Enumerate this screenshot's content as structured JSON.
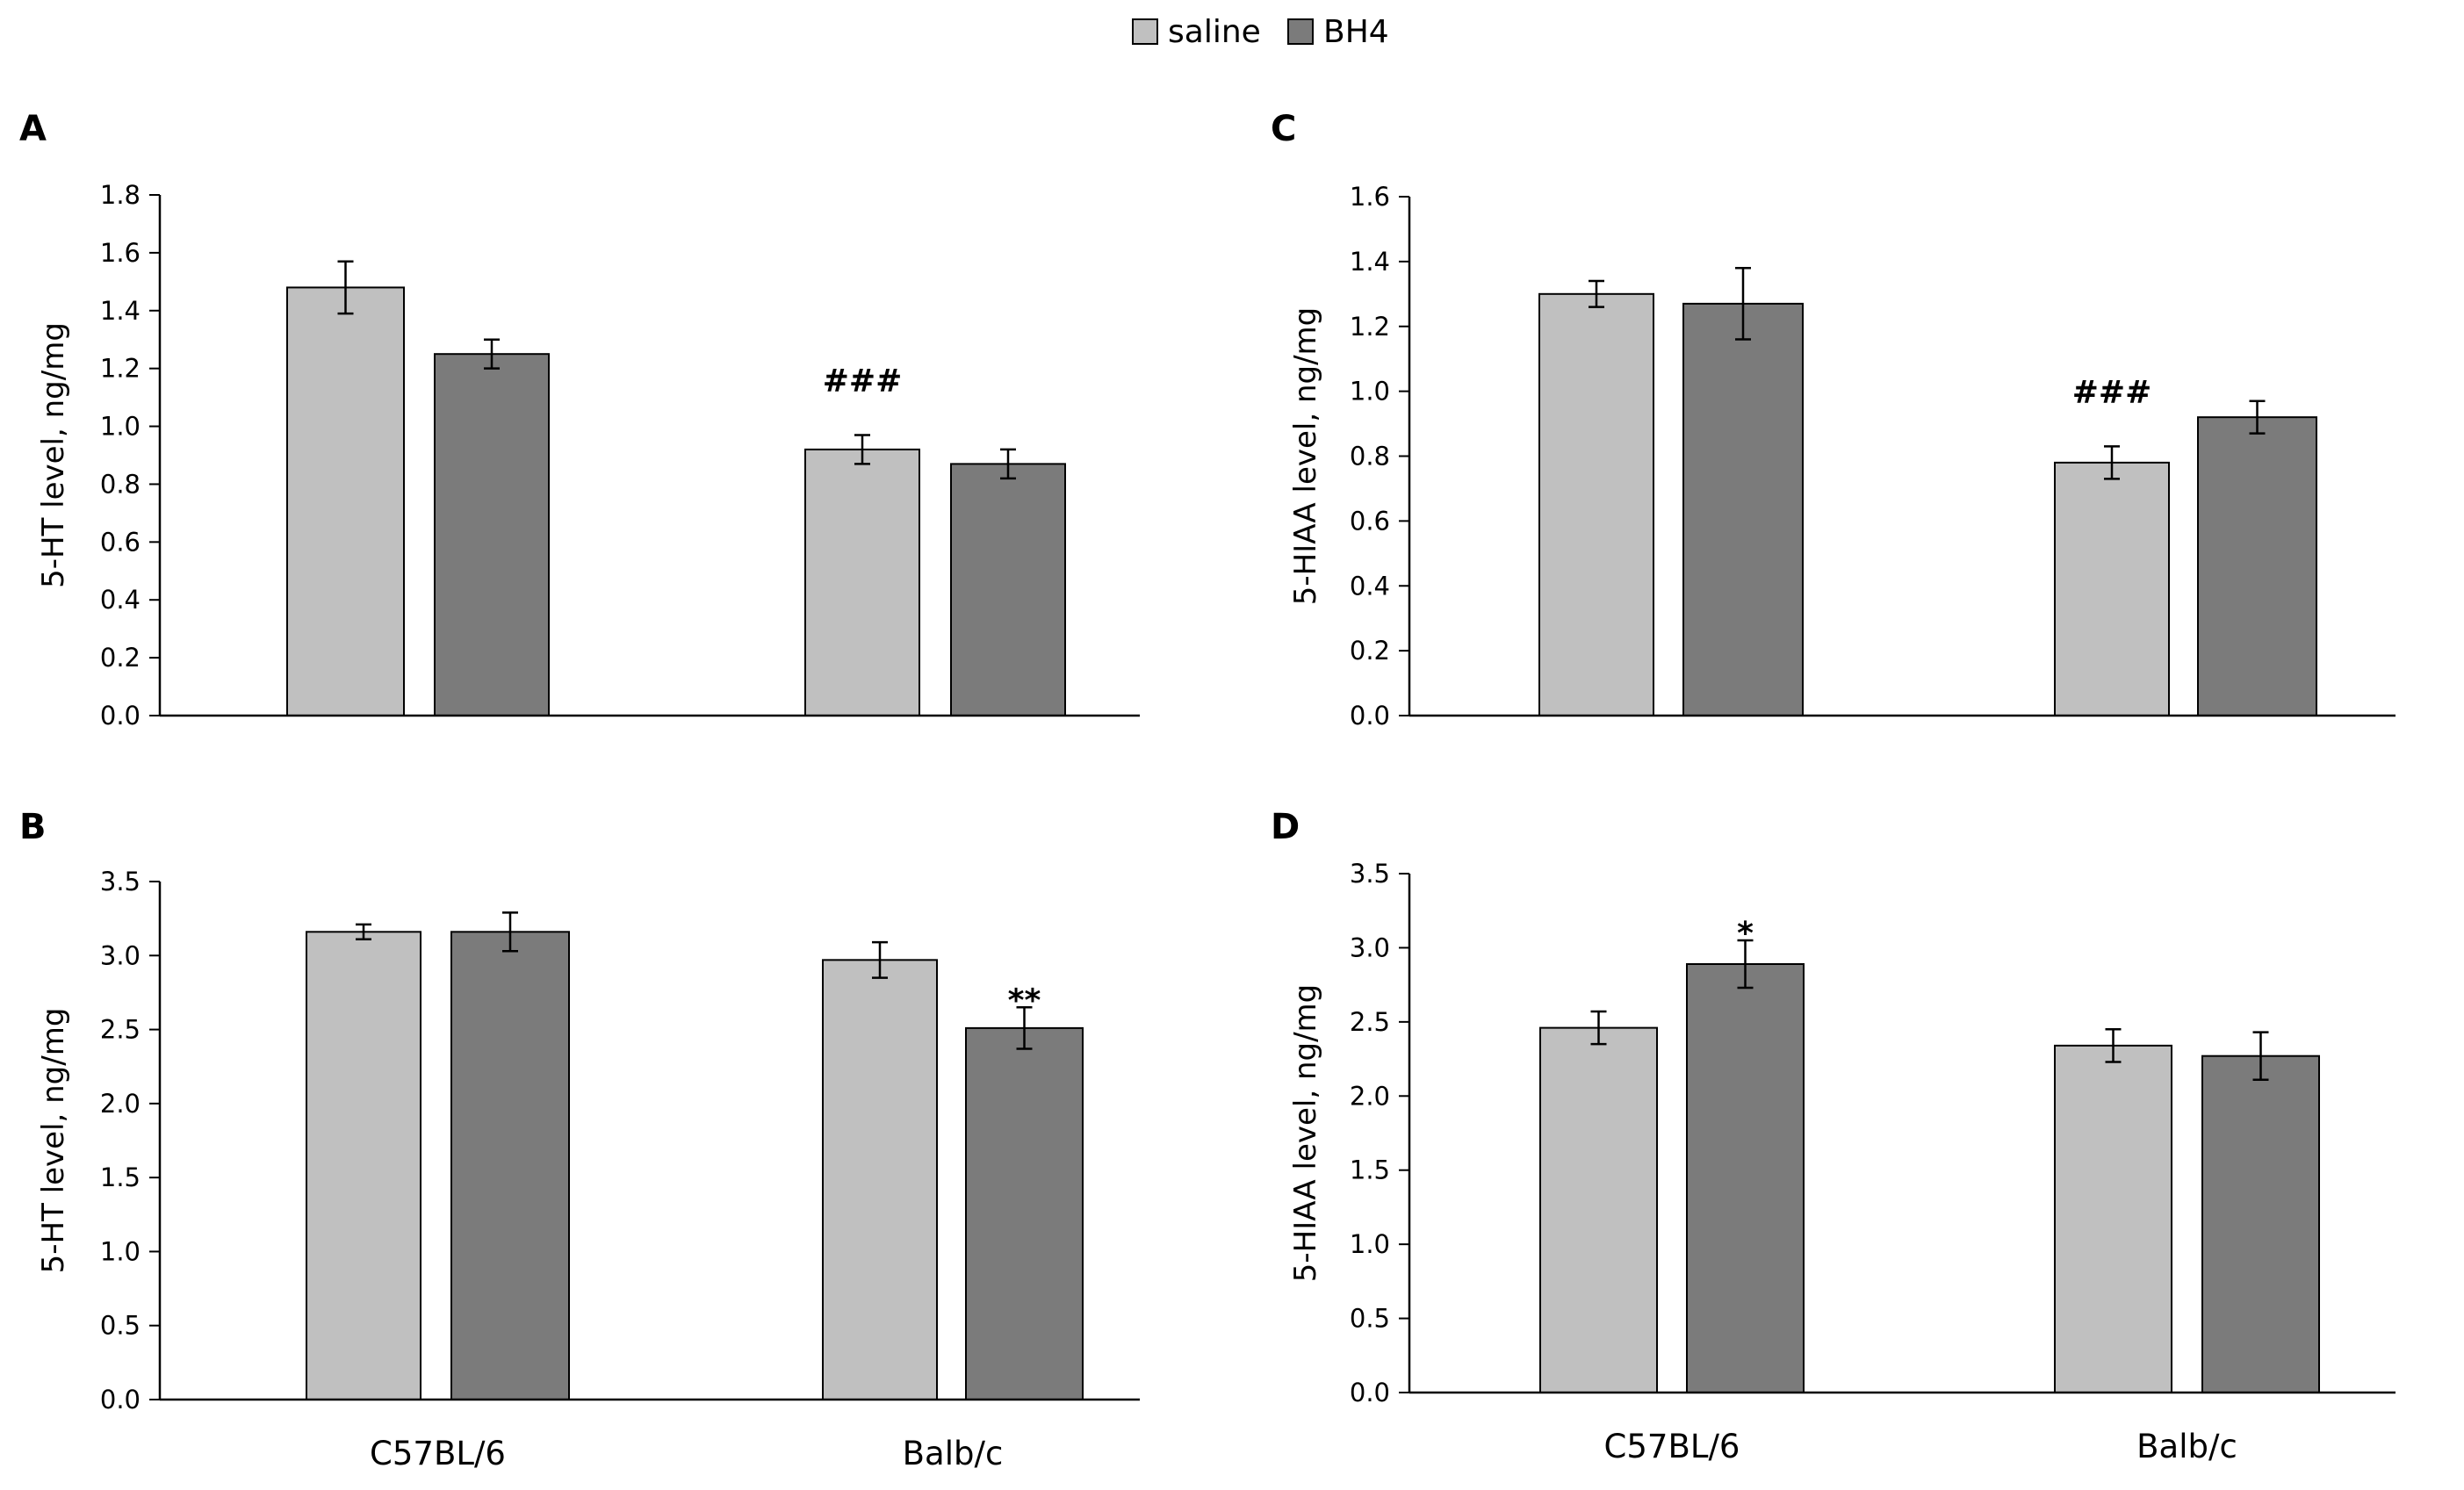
{
  "legend": {
    "entries": [
      {
        "name": "saline",
        "color": "#c0c0c0"
      },
      {
        "name": "BH4",
        "color": "#7b7b7b"
      }
    ]
  },
  "colors": {
    "saline": "#c0c0c0",
    "BH4": "#7b7b7b",
    "edge": "#000000"
  },
  "chart_data": [
    {
      "panel": "A",
      "type": "bar",
      "ylabel": "5-HT level, ng/mg",
      "categories": [
        "C57BL/6",
        "Balb/c"
      ],
      "show_categories": false,
      "ylim": [
        0,
        1.8
      ],
      "yticks": [
        "0.0",
        "0.2",
        "0.4",
        "0.6",
        "0.8",
        "1.0",
        "1.2",
        "1.4",
        "1.6",
        "1.8"
      ],
      "series": [
        {
          "name": "saline",
          "values": [
            1.48,
            0.92
          ],
          "errors": [
            0.09,
            0.05
          ]
        },
        {
          "name": "BH4",
          "values": [
            1.25,
            0.87
          ],
          "errors": [
            0.05,
            0.05
          ]
        }
      ],
      "annotations": [
        {
          "text": "###",
          "category": 1,
          "series": 0
        }
      ]
    },
    {
      "panel": "C",
      "type": "bar",
      "ylabel": "5-HIAA level, ng/mg",
      "categories": [
        "C57BL/6",
        "Balb/c"
      ],
      "show_categories": false,
      "ylim": [
        0,
        1.6
      ],
      "yticks": [
        "0.0",
        "0.2",
        "0.4",
        "0.6",
        "0.8",
        "1.0",
        "1.2",
        "1.4",
        "1.6"
      ],
      "series": [
        {
          "name": "saline",
          "values": [
            1.3,
            0.78
          ],
          "errors": [
            0.04,
            0.05
          ]
        },
        {
          "name": "BH4",
          "values": [
            1.27,
            0.92
          ],
          "errors": [
            0.11,
            0.05
          ]
        }
      ],
      "annotations": [
        {
          "text": "###",
          "category": 1,
          "series": 0
        }
      ]
    },
    {
      "panel": "B",
      "type": "bar",
      "ylabel": "5-HT level, ng/mg",
      "categories": [
        "C57BL/6",
        "Balb/c"
      ],
      "show_categories": true,
      "ylim": [
        0,
        3.5
      ],
      "yticks": [
        "0.0",
        "0.5",
        "1.0",
        "1.5",
        "2.0",
        "2.5",
        "3.0",
        "3.5"
      ],
      "series": [
        {
          "name": "saline",
          "values": [
            3.16,
            2.97
          ],
          "errors": [
            0.05,
            0.12
          ]
        },
        {
          "name": "BH4",
          "values": [
            3.16,
            2.51
          ],
          "errors": [
            0.13,
            0.14
          ]
        }
      ],
      "annotations": [
        {
          "text": "**",
          "category": 1,
          "series": 1
        }
      ]
    },
    {
      "panel": "D",
      "type": "bar",
      "ylabel": "5-HIAA level, ng/mg",
      "categories": [
        "C57BL/6",
        "Balb/c"
      ],
      "show_categories": true,
      "ylim": [
        0,
        3.5
      ],
      "yticks": [
        "0.0",
        "0.5",
        "1.0",
        "1.5",
        "2.0",
        "2.5",
        "3.0",
        "3.5"
      ],
      "series": [
        {
          "name": "saline",
          "values": [
            2.46,
            2.34
          ],
          "errors": [
            0.11,
            0.11
          ]
        },
        {
          "name": "BH4",
          "values": [
            2.89,
            2.27
          ],
          "errors": [
            0.16,
            0.16
          ]
        }
      ],
      "annotations": [
        {
          "text": "*",
          "category": 0,
          "series": 1
        }
      ]
    }
  ]
}
